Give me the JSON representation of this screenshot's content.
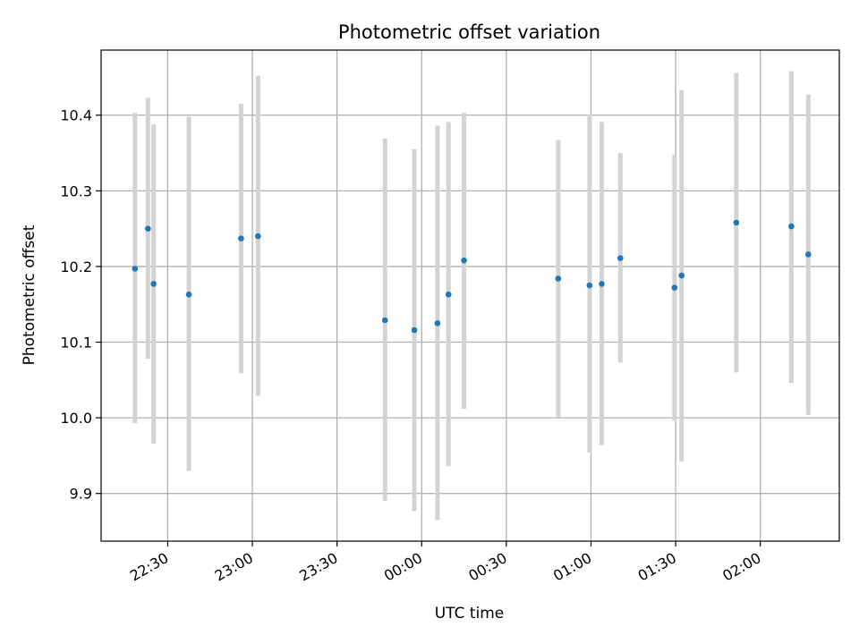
{
  "chart_data": {
    "type": "scatter",
    "title": "Photometric offset variation",
    "xlabel": "UTC time",
    "ylabel": "Photometric offset",
    "x_tick_labels": [
      "22:30",
      "23:00",
      "23:30",
      "00:00",
      "00:30",
      "01:00",
      "01:30",
      "02:00"
    ],
    "x_ticks_minutes": [
      -90,
      -60,
      -30,
      0,
      30,
      60,
      90,
      120
    ],
    "xlim_minutes": [
      -113.6,
      148.0
    ],
    "y_tick_labels": [
      "9.9",
      "10.0",
      "10.1",
      "10.2",
      "10.3",
      "10.4"
    ],
    "y_ticks": [
      9.9,
      10.0,
      10.1,
      10.2,
      10.3,
      10.4
    ],
    "ylim": [
      9.837,
      10.486
    ],
    "grid": true,
    "marker_color": "#1f77b4",
    "errorbar_color": "#d3d3d3",
    "points": [
      {
        "t": -101.6,
        "y": 10.197,
        "low": 9.993,
        "high": 10.403
      },
      {
        "t": -97.0,
        "y": 10.25,
        "low": 10.078,
        "high": 10.423
      },
      {
        "t": -95.0,
        "y": 10.177,
        "low": 9.966,
        "high": 10.388
      },
      {
        "t": -82.5,
        "y": 10.163,
        "low": 9.93,
        "high": 10.398
      },
      {
        "t": -64.0,
        "y": 10.237,
        "low": 10.059,
        "high": 10.415
      },
      {
        "t": -58.0,
        "y": 10.24,
        "low": 10.029,
        "high": 10.452
      },
      {
        "t": -13.0,
        "y": 10.129,
        "low": 9.89,
        "high": 10.369
      },
      {
        "t": -2.6,
        "y": 10.116,
        "low": 9.877,
        "high": 10.355
      },
      {
        "t": 5.6,
        "y": 10.125,
        "low": 9.865,
        "high": 10.386
      },
      {
        "t": 9.5,
        "y": 10.163,
        "low": 9.936,
        "high": 10.391
      },
      {
        "t": 15.0,
        "y": 10.208,
        "low": 10.012,
        "high": 10.403
      },
      {
        "t": 48.4,
        "y": 10.184,
        "low": 10.001,
        "high": 10.367
      },
      {
        "t": 59.5,
        "y": 10.175,
        "low": 9.954,
        "high": 10.401
      },
      {
        "t": 63.8,
        "y": 10.177,
        "low": 9.964,
        "high": 10.391
      },
      {
        "t": 70.4,
        "y": 10.211,
        "low": 10.073,
        "high": 10.35
      },
      {
        "t": 89.6,
        "y": 10.172,
        "low": 9.996,
        "high": 10.348
      },
      {
        "t": 92.1,
        "y": 10.188,
        "low": 9.942,
        "high": 10.433
      },
      {
        "t": 111.5,
        "y": 10.258,
        "low": 10.06,
        "high": 10.456
      },
      {
        "t": 131.0,
        "y": 10.253,
        "low": 10.046,
        "high": 10.458
      },
      {
        "t": 137.0,
        "y": 10.216,
        "low": 10.004,
        "high": 10.427
      }
    ]
  }
}
